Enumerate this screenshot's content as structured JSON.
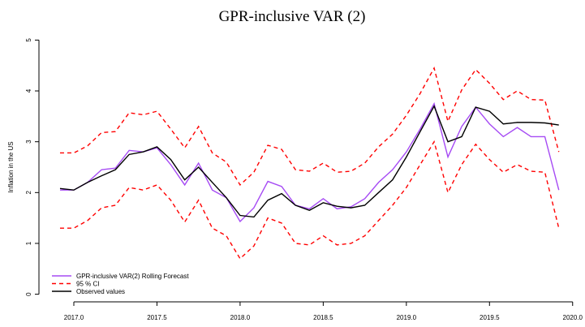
{
  "chart_data": {
    "type": "line",
    "title": "GPR-inclusive VAR (2)",
    "y_label": "Inflation in the US",
    "x": [
      2016.917,
      2017.0,
      2017.083,
      2017.167,
      2017.25,
      2017.333,
      2017.417,
      2017.5,
      2017.583,
      2017.667,
      2017.75,
      2017.833,
      2017.917,
      2018.0,
      2018.083,
      2018.167,
      2018.25,
      2018.333,
      2018.417,
      2018.5,
      2018.583,
      2018.667,
      2018.75,
      2018.833,
      2018.917,
      2019.0,
      2019.083,
      2019.167,
      2019.25,
      2019.333,
      2019.417,
      2019.5,
      2019.583,
      2019.667,
      2019.75,
      2019.833,
      2019.917
    ],
    "series": [
      {
        "name": "GPR-inclusive VAR(2) Rolling Forecast",
        "color": "#a64bf4",
        "linestyle": "solid",
        "values": [
          2.05,
          2.05,
          2.2,
          2.45,
          2.48,
          2.83,
          2.8,
          2.88,
          2.55,
          2.15,
          2.58,
          2.05,
          1.9,
          1.43,
          1.7,
          2.22,
          2.12,
          1.75,
          1.68,
          1.88,
          1.68,
          1.72,
          1.88,
          2.2,
          2.45,
          2.8,
          3.25,
          3.75,
          2.7,
          3.3,
          3.68,
          3.35,
          3.1,
          3.28,
          3.1,
          3.1,
          2.05
        ]
      },
      {
        "name": "95 % CI",
        "color": "#ff0000",
        "linestyle": "dashed",
        "upper": [
          2.78,
          2.78,
          2.92,
          3.18,
          3.2,
          3.57,
          3.53,
          3.6,
          3.25,
          2.88,
          3.3,
          2.78,
          2.6,
          2.15,
          2.4,
          2.93,
          2.85,
          2.45,
          2.42,
          2.58,
          2.4,
          2.42,
          2.58,
          2.9,
          3.15,
          3.52,
          3.95,
          4.45,
          3.4,
          4.02,
          4.42,
          4.15,
          3.83,
          4.0,
          3.83,
          3.82,
          2.8
        ],
        "lower": [
          1.3,
          1.3,
          1.45,
          1.7,
          1.75,
          2.1,
          2.05,
          2.15,
          1.85,
          1.42,
          1.85,
          1.3,
          1.15,
          0.7,
          0.95,
          1.5,
          1.4,
          1.0,
          0.97,
          1.15,
          0.97,
          1.0,
          1.15,
          1.45,
          1.75,
          2.1,
          2.55,
          3.0,
          2.0,
          2.55,
          2.95,
          2.65,
          2.4,
          2.55,
          2.42,
          2.4,
          1.3
        ]
      },
      {
        "name": "Observed values",
        "color": "#000000",
        "linestyle": "solid",
        "values": [
          2.08,
          2.05,
          2.2,
          2.33,
          2.45,
          2.75,
          2.8,
          2.9,
          2.65,
          2.25,
          2.5,
          2.2,
          1.9,
          1.55,
          1.52,
          1.85,
          1.98,
          1.75,
          1.65,
          1.8,
          1.73,
          1.7,
          1.75,
          2.0,
          2.25,
          2.7,
          3.2,
          3.7,
          3.0,
          3.1,
          3.68,
          3.6,
          3.35,
          3.38,
          3.38,
          3.37,
          3.33
        ]
      }
    ],
    "xlim": [
      2016.8,
      2020.05
    ],
    "ylim": [
      -0.15,
      5.15
    ],
    "xticks": [
      {
        "value": 2017,
        "label": "2017.0"
      },
      {
        "value": 2017.5,
        "label": "2017.5"
      },
      {
        "value": 2018,
        "label": "2018.0"
      },
      {
        "value": 2018.5,
        "label": "2018.5"
      },
      {
        "value": 2019,
        "label": "2019.0"
      },
      {
        "value": 2019.5,
        "label": "2019.5"
      },
      {
        "value": 2020,
        "label": "2020.0"
      }
    ],
    "yticks": [
      0,
      1,
      2,
      3,
      4,
      5
    ],
    "grid": false,
    "legend": "bottom-left"
  }
}
